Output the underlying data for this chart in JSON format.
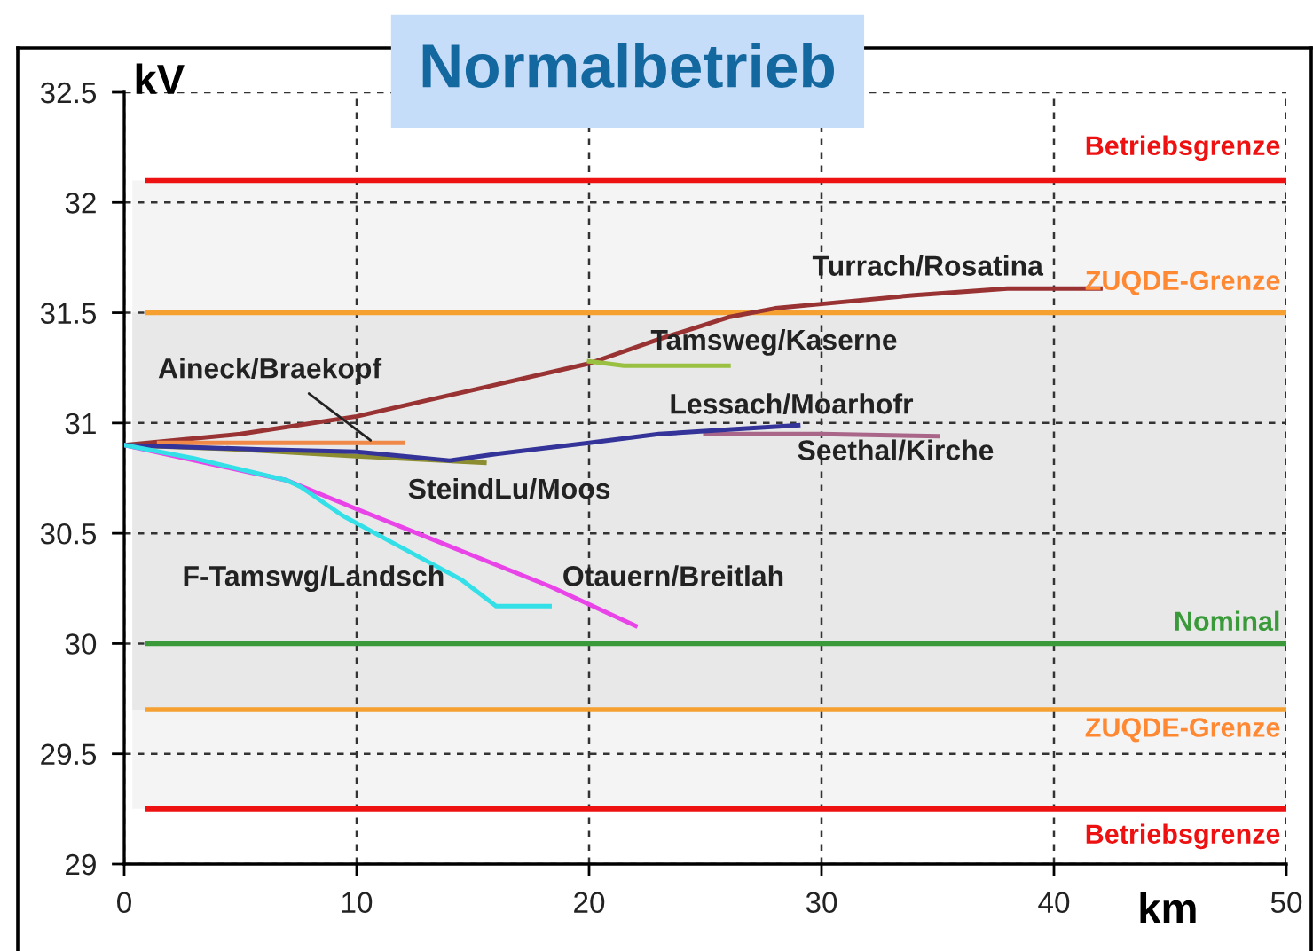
{
  "chart_data": {
    "type": "line",
    "title": "Normalbetrieb",
    "xlabel": "km",
    "ylabel": "kV",
    "xlim": [
      0,
      50
    ],
    "ylim": [
      29,
      32.5
    ],
    "xticks": [
      0,
      10,
      20,
      30,
      40,
      50
    ],
    "yticks": [
      29,
      29.5,
      30,
      30.5,
      31,
      31.5,
      32,
      32.5
    ],
    "grid": true,
    "line_style": "solid",
    "series": [
      {
        "name": "Turrach/Rosatina",
        "color": "#993333",
        "x": [
          0,
          5,
          10,
          15,
          20,
          23,
          26,
          28,
          30,
          34,
          38,
          42
        ],
        "values": [
          30.9,
          30.95,
          31.03,
          31.15,
          31.27,
          31.38,
          31.48,
          31.52,
          31.54,
          31.58,
          31.61,
          31.61
        ]
      },
      {
        "name": "Tamsweg/Kaserne",
        "color": "#99c040",
        "x": [
          20,
          21.5,
          26
        ],
        "values": [
          31.28,
          31.26,
          31.26
        ]
      },
      {
        "name": "Aineck/Braekopf",
        "color": "#f08848",
        "x": [
          1.5,
          12
        ],
        "values": [
          30.91,
          30.91
        ]
      },
      {
        "name": "Seethal/Kirche",
        "color": "#aa6688",
        "x": [
          25,
          30,
          35
        ],
        "values": [
          30.95,
          30.95,
          30.94
        ]
      },
      {
        "name": "SteindLu/Moos",
        "color": "#8c8c30",
        "x": [
          0,
          5,
          10,
          15.5
        ],
        "values": [
          30.9,
          30.88,
          30.85,
          30.82
        ]
      },
      {
        "name": "Lessach/Moarhofr",
        "color": "#333399",
        "x": [
          0,
          6,
          10,
          14,
          16,
          20,
          23,
          26,
          29
        ],
        "values": [
          30.9,
          30.88,
          30.87,
          30.83,
          30.86,
          30.91,
          30.95,
          30.97,
          30.99
        ]
      },
      {
        "name": "Otauern/Breitlah",
        "color": "#e844e8",
        "x": [
          0,
          7,
          10,
          14.5,
          18.3,
          22
        ],
        "values": [
          30.9,
          30.74,
          30.61,
          30.42,
          30.26,
          30.08
        ]
      },
      {
        "name": "F-Tamswg/Landsch",
        "color": "#33e0e8",
        "x": [
          0,
          3,
          7,
          7.6,
          9.4,
          11.5,
          14.5,
          16,
          18.3
        ],
        "values": [
          30.9,
          30.84,
          30.74,
          30.71,
          30.58,
          30.46,
          30.29,
          30.17,
          30.17
        ]
      }
    ],
    "ref_lines": [
      {
        "axis": "y",
        "value": 32.1,
        "label": "Betriebsgrenze",
        "color": "#ee1111"
      },
      {
        "axis": "y",
        "value": 31.5,
        "label": "ZUQDE-Grenze",
        "color": "#f5a030"
      },
      {
        "axis": "y",
        "value": 30,
        "label": "Nominal",
        "color": "#3a9a3a"
      },
      {
        "axis": "y",
        "value": 29.7,
        "label": "ZUQDE-Grenze",
        "color": "#f5a030"
      },
      {
        "axis": "y",
        "value": 29.25,
        "label": "Betriebsgrenze",
        "color": "#ee1111"
      }
    ],
    "bands": [
      {
        "axis": "y",
        "from": 29.25,
        "to": 32.1,
        "color": "#f4f4f4"
      },
      {
        "axis": "y",
        "from": 29.7,
        "to": 31.5,
        "color": "#e8e8e8"
      }
    ]
  }
}
